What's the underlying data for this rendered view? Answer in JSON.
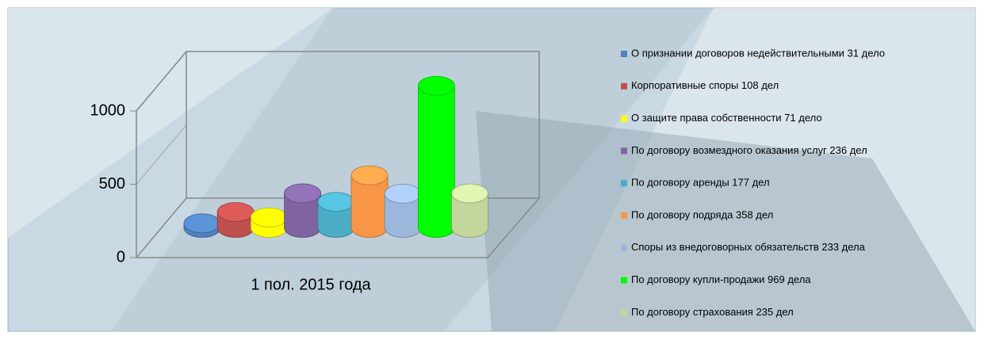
{
  "chart_data": {
    "type": "bar",
    "categories": [
      "1 пол. 2015 года"
    ],
    "ylim": [
      0,
      1000
    ],
    "yticks": [
      0,
      500,
      1000
    ],
    "series": [
      {
        "name": "О признании договоров недействительными 31 дело",
        "color": "#4f81bd",
        "values": [
          31
        ]
      },
      {
        "name": "Корпоративные споры 108 дел",
        "color": "#c0504d",
        "values": [
          108
        ]
      },
      {
        "name": "О защите права собственности 71 дело",
        "color": "#ffff00",
        "values": [
          71
        ]
      },
      {
        "name": "По договору возмездного оказания услуг 236 дел",
        "color": "#8064a2",
        "values": [
          236
        ]
      },
      {
        "name": "По договору аренды 177 дел",
        "color": "#4bacc6",
        "values": [
          177
        ]
      },
      {
        "name": "По договору подряда 358 дел",
        "color": "#f79646",
        "values": [
          358
        ]
      },
      {
        "name": "Споры из внедоговорных обязательств 233 дела",
        "color": "#9bb7dc",
        "values": [
          233
        ]
      },
      {
        "name": "По договору купли-продажи 969 дела",
        "color": "#00ff00",
        "values": [
          969
        ]
      },
      {
        "name": "По договору страхования 235 дел",
        "color": "#c3d69b",
        "values": [
          235
        ]
      }
    ]
  }
}
